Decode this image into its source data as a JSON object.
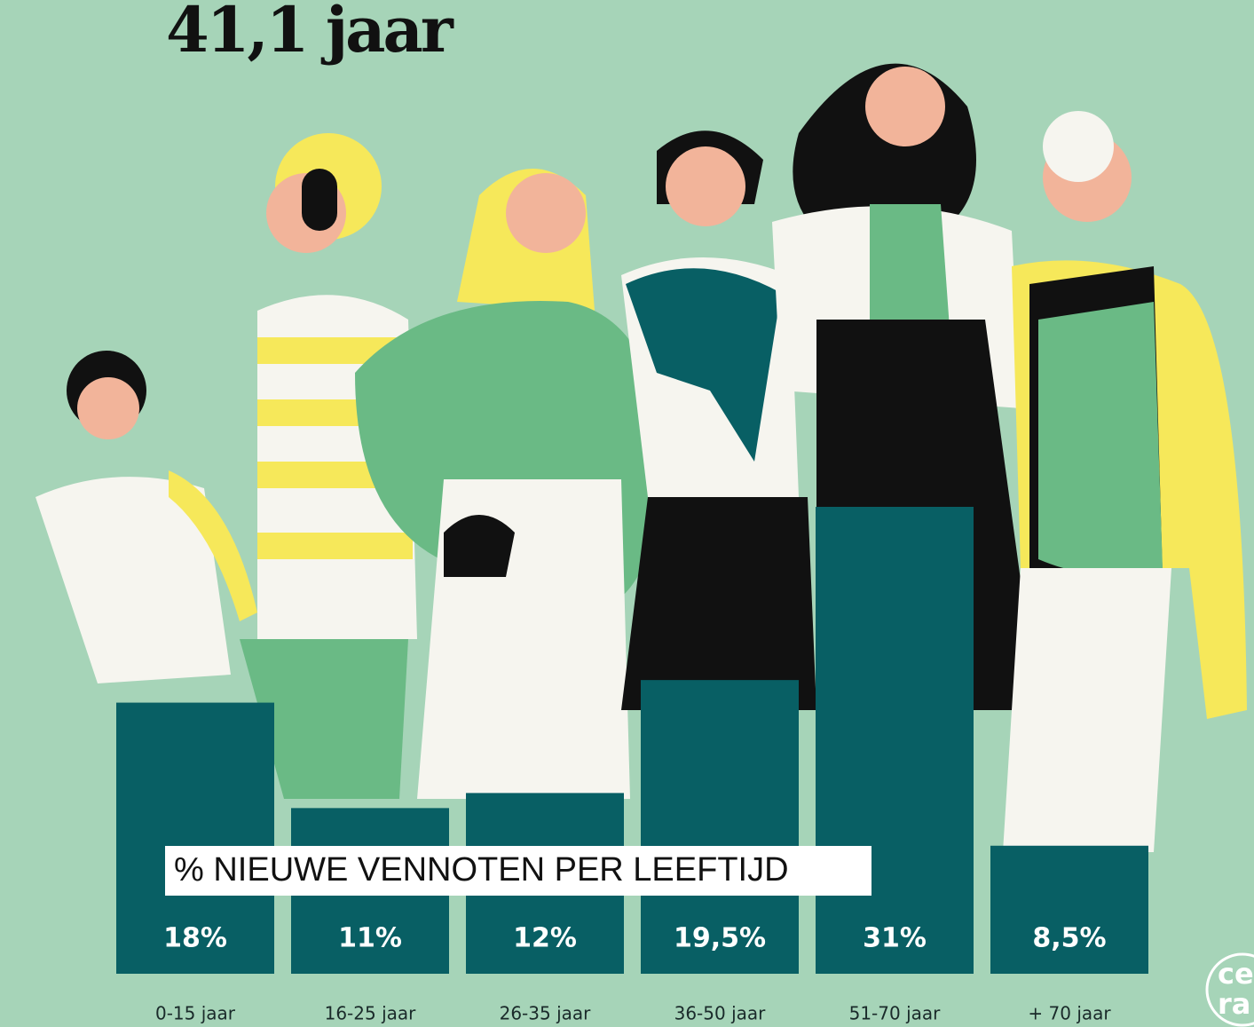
{
  "chart_data": {
    "type": "bar",
    "title": "41,1 jaar",
    "subtitle": "% NIEUWE VENNOTEN PER LEEFTIJD",
    "categories": [
      "0-15 jaar",
      "16-25 jaar",
      "26-35 jaar",
      "36-50 jaar",
      "51-70 jaar",
      "+ 70 jaar"
    ],
    "values": [
      18,
      11,
      12,
      19.5,
      31,
      8.5
    ],
    "value_labels": [
      "18%",
      "11%",
      "12%",
      "19,5%",
      "31%",
      "8,5%"
    ],
    "color": "#085f64"
  },
  "logo": [
    "ce",
    "ra"
  ]
}
